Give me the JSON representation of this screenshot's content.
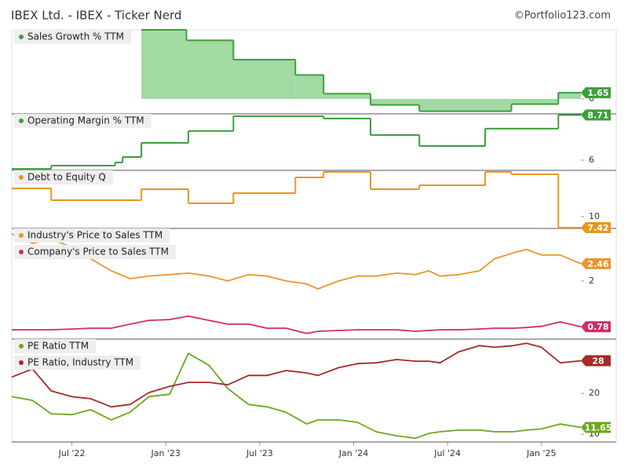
{
  "header": {
    "title": "IBEX Ltd. - IBEX - Ticker Nerd",
    "credit": "©Portfolio123.com"
  },
  "chart_data": [
    {
      "type": "line",
      "step": true,
      "area": true,
      "x": [
        2022.87,
        2023.11,
        2023.36,
        2023.69,
        2023.84,
        2024.09,
        2024.35,
        2024.84,
        2025.09,
        2025.21
      ],
      "series": [
        {
          "name": "Sales Growth % TTM",
          "color": "#3c9f3c",
          "fill": "#a3d9a3",
          "values": [
            18.5,
            15.7,
            10.5,
            6.4,
            1.4,
            -1.6,
            -3.3,
            -1.4,
            1.65,
            1.65
          ]
        }
      ],
      "xlim": [
        2022.18,
        2025.21
      ],
      "ylim": [
        -4,
        18.5
      ],
      "yticks": [
        0
      ]
    },
    {
      "type": "line",
      "step": true,
      "area": false,
      "x": [
        2022.18,
        2022.39,
        2022.73,
        2022.77,
        2022.87,
        2023.12,
        2023.36,
        2023.84,
        2024.09,
        2024.35,
        2024.7,
        2025.09,
        2025.21
      ],
      "series": [
        {
          "name": "Operating Margin % TTM",
          "color": "#3c9f3c",
          "values": [
            5.48,
            5.67,
            5.86,
            6.19,
            7.04,
            7.75,
            8.64,
            8.5,
            7.51,
            6.85,
            7.89,
            8.71,
            8.71
          ]
        }
      ],
      "xlim": [
        2022.18,
        2025.21
      ],
      "ylim": [
        5.39,
        8.78
      ],
      "yticks": [
        6
      ]
    },
    {
      "type": "line",
      "step": true,
      "area": false,
      "x": [
        2022.18,
        2022.39,
        2022.87,
        2023.12,
        2023.36,
        2023.69,
        2023.84,
        2024.09,
        2024.35,
        2024.7,
        2024.84,
        2025.09,
        2025.21
      ],
      "series": [
        {
          "name": "Debt to Equity Q",
          "color": "#e8961e",
          "values": [
            16.63,
            13.87,
            16.45,
            13.13,
            15.52,
            19.21,
            20.5,
            16.45,
            17.37,
            20.5,
            19.94,
            7.42,
            7.42
          ]
        }
      ],
      "xlim": [
        2022.18,
        2025.21
      ],
      "ylim": [
        7.24,
        20.87
      ],
      "yticks": [
        10
      ]
    },
    {
      "type": "line",
      "step": false,
      "area": false,
      "x": [
        2022.18,
        2022.29,
        2022.39,
        2022.5,
        2022.6,
        2022.71,
        2022.81,
        2022.91,
        2023.02,
        2023.12,
        2023.23,
        2023.33,
        2023.44,
        2023.54,
        2023.64,
        2023.75,
        2023.81,
        2023.92,
        2024.02,
        2024.12,
        2024.23,
        2024.33,
        2024.4,
        2024.46,
        2024.56,
        2024.67,
        2024.75,
        2024.85,
        2024.92,
        2025.0,
        2025.1,
        2025.21
      ],
      "series": [
        {
          "name": "Industry's Price to Sales TTM",
          "color": "#ea9530",
          "values": [
            3.26,
            3.0,
            3.11,
            2.9,
            2.59,
            2.27,
            2.06,
            2.13,
            2.17,
            2.21,
            2.13,
            2.0,
            2.17,
            2.13,
            2.0,
            1.92,
            1.79,
            2.0,
            2.13,
            2.13,
            2.21,
            2.17,
            2.27,
            2.13,
            2.17,
            2.27,
            2.59,
            2.75,
            2.84,
            2.69,
            2.69,
            2.46
          ]
        },
        {
          "name": "Company's Price to Sales TTM",
          "color": "#d42a6a",
          "values": [
            0.7,
            0.7,
            0.7,
            0.72,
            0.74,
            0.74,
            0.85,
            0.95,
            0.97,
            1.06,
            0.95,
            0.85,
            0.85,
            0.74,
            0.74,
            0.6,
            0.66,
            0.68,
            0.7,
            0.7,
            0.7,
            0.66,
            0.68,
            0.7,
            0.7,
            0.72,
            0.74,
            0.74,
            0.76,
            0.79,
            0.91,
            0.78
          ]
        }
      ],
      "xlim": [
        2022.18,
        2025.21
      ],
      "ylim": [
        0.45,
        3.4
      ],
      "yticks": [
        2
      ]
    },
    {
      "type": "line",
      "step": false,
      "area": false,
      "x": [
        2022.18,
        2022.29,
        2022.39,
        2022.5,
        2022.6,
        2022.71,
        2022.81,
        2022.91,
        2023.02,
        2023.12,
        2023.23,
        2023.33,
        2023.44,
        2023.54,
        2023.64,
        2023.75,
        2023.81,
        2023.92,
        2024.02,
        2024.12,
        2024.23,
        2024.33,
        2024.4,
        2024.46,
        2024.56,
        2024.67,
        2024.75,
        2024.85,
        2024.92,
        2025.0,
        2025.1,
        2025.21
      ],
      "series": [
        {
          "name": "PE Ratio TTM",
          "color": "#6aa81e",
          "values": [
            19.2,
            18.3,
            15.0,
            14.8,
            16.0,
            13.5,
            15.4,
            19.2,
            19.8,
            29.8,
            26.9,
            21.2,
            17.3,
            16.7,
            15.4,
            12.5,
            13.5,
            13.5,
            12.9,
            10.6,
            9.6,
            9.0,
            10.2,
            10.6,
            11.0,
            11.0,
            10.6,
            10.6,
            11.0,
            11.3,
            12.5,
            11.65
          ]
        },
        {
          "name": "PE Ratio, Industry TTM",
          "color": "#a52a2a",
          "values": [
            24.0,
            26.0,
            20.6,
            19.2,
            18.7,
            16.7,
            17.3,
            20.2,
            21.7,
            22.7,
            22.7,
            22.1,
            24.4,
            24.4,
            25.6,
            25.0,
            24.4,
            26.3,
            27.3,
            27.5,
            28.3,
            27.9,
            27.9,
            27.5,
            30.2,
            31.7,
            31.3,
            31.7,
            32.3,
            31.3,
            27.5,
            28
          ]
        }
      ],
      "xlim": [
        2022.18,
        2025.21
      ],
      "ylim": [
        8.1,
        33.3
      ],
      "yticks": [
        20,
        10
      ],
      "xticks": [
        {
          "value": 2022.5,
          "label": "Jul '22"
        },
        {
          "value": 2023.0,
          "label": "Jan '23"
        },
        {
          "value": 2023.5,
          "label": "Jul '23"
        },
        {
          "value": 2024.0,
          "label": "Jan '24"
        },
        {
          "value": 2024.5,
          "label": "Jul '24"
        },
        {
          "value": 2025.0,
          "label": "Jan '25"
        }
      ]
    }
  ]
}
